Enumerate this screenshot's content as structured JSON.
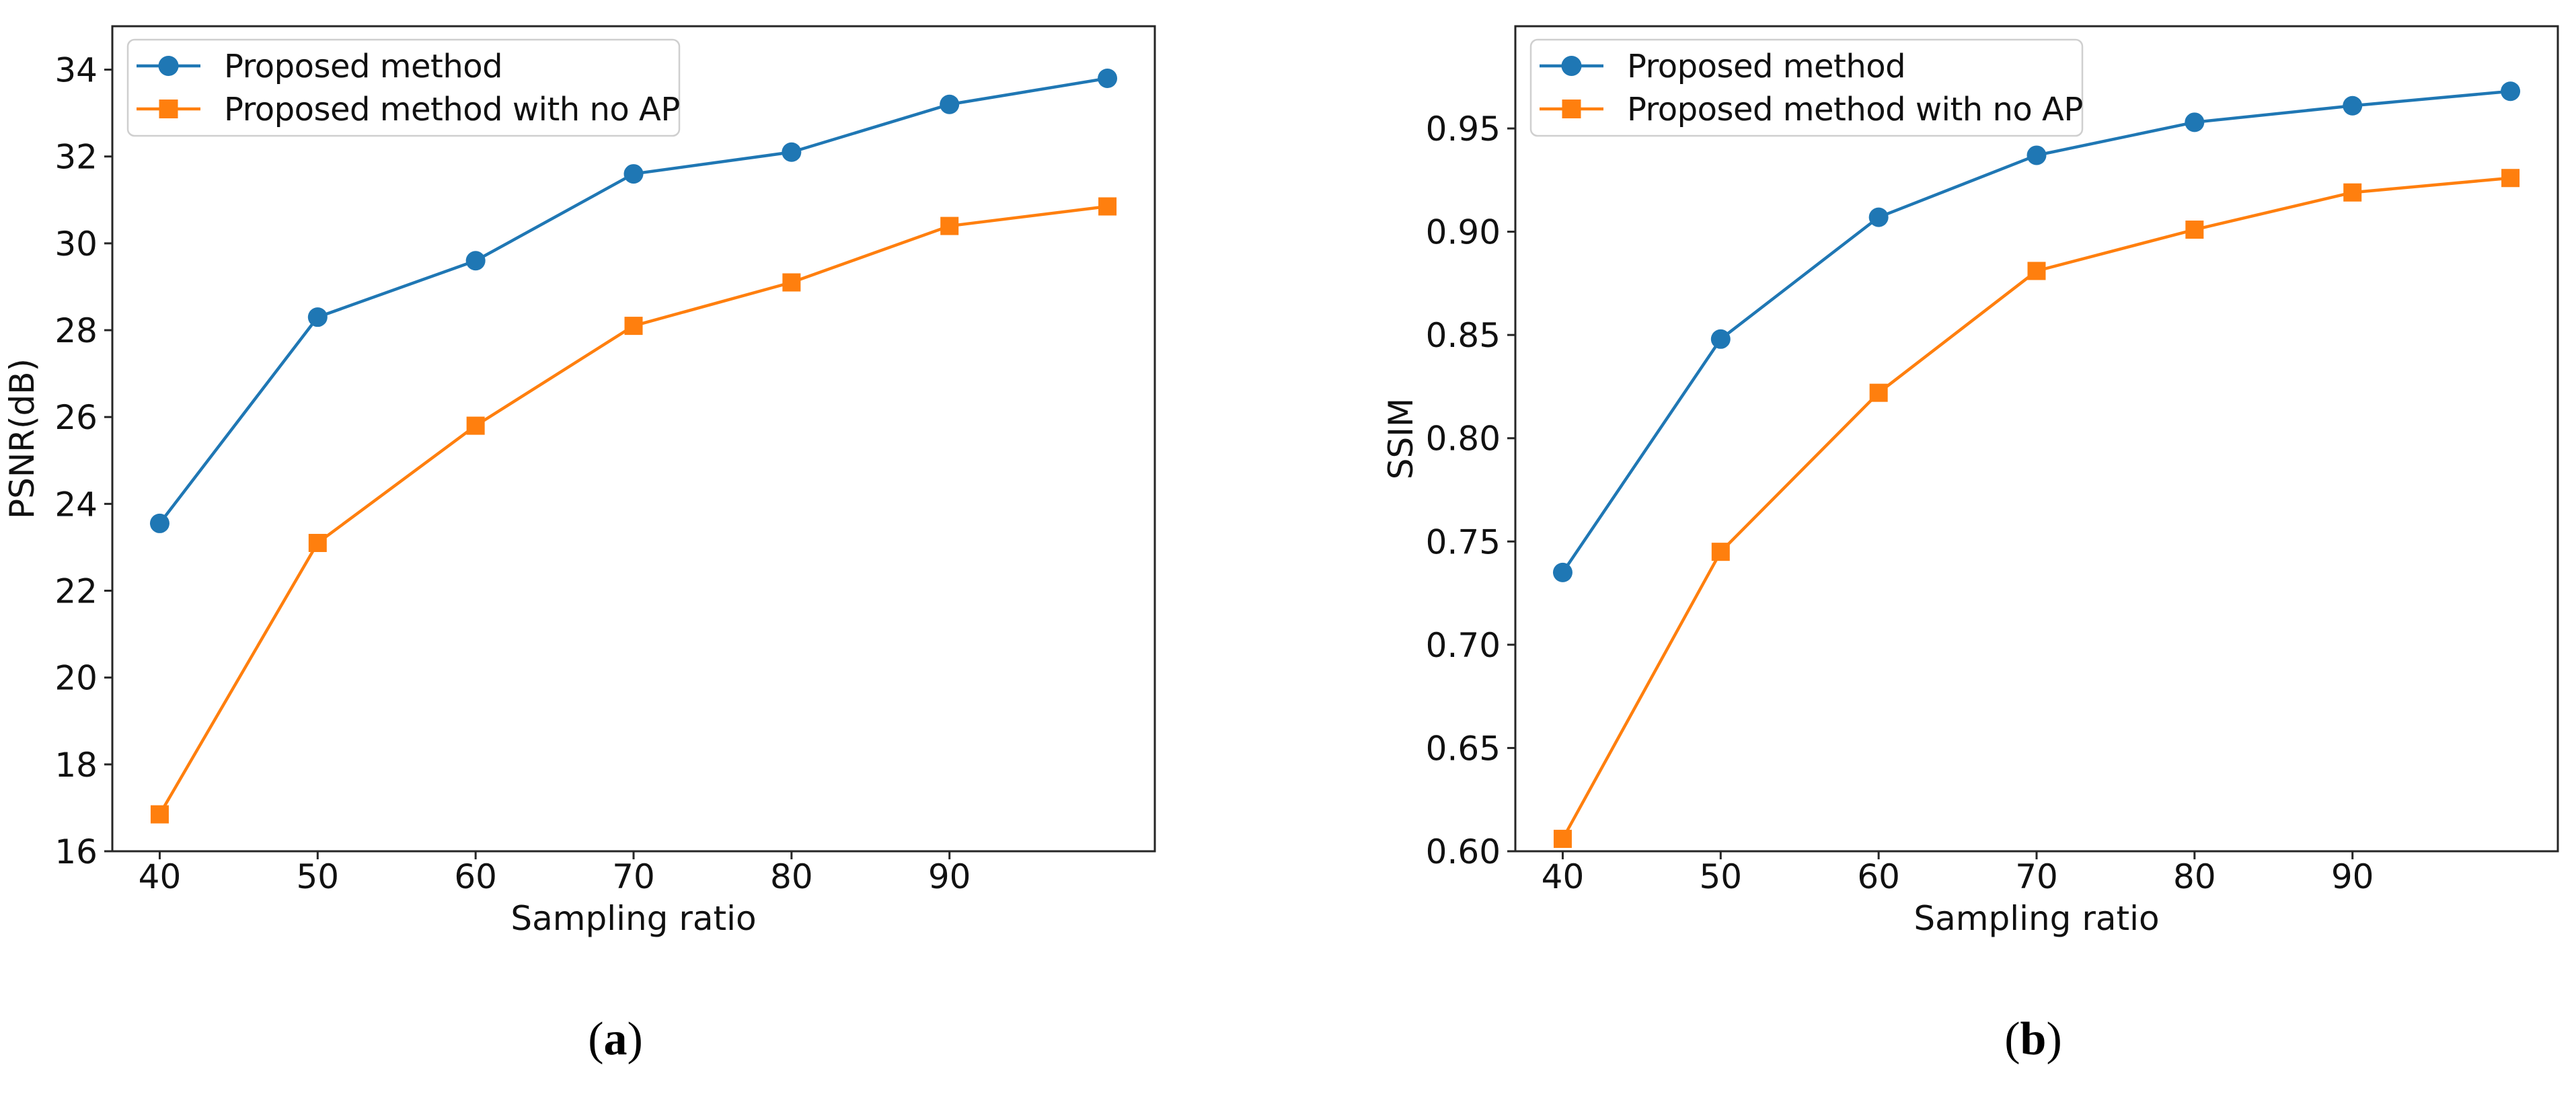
{
  "figure": {
    "background": "#ffffff",
    "text_color": "#111111",
    "spine_color": "#262626",
    "legend_border_color": "#cfcfcf",
    "legend_background": "#ffffff"
  },
  "captions": [
    {
      "open": "(",
      "letter": "a",
      "close": ")"
    },
    {
      "open": "(",
      "letter": "b",
      "close": ")"
    }
  ],
  "chart_data": [
    {
      "type": "line",
      "panel": "a",
      "title": "",
      "xlabel": "Sampling ratio",
      "ylabel": "PSNR(dB)",
      "x": [
        40,
        50,
        60,
        70,
        80,
        90,
        100
      ],
      "series": [
        {
          "name": "Proposed method",
          "color": "#1f77b4",
          "marker": "circle",
          "values": [
            23.55,
            28.3,
            29.6,
            31.6,
            32.1,
            33.2,
            33.8
          ]
        },
        {
          "name": "Proposed method with no AP",
          "color": "#ff7f0e",
          "marker": "square",
          "values": [
            16.85,
            23.1,
            25.8,
            28.1,
            29.1,
            30.4,
            30.85
          ]
        }
      ],
      "xlim": [
        37,
        103
      ],
      "ylim": [
        16.0,
        35.0
      ],
      "xticks": {
        "values": [
          40,
          50,
          60,
          70,
          80,
          90
        ],
        "labels": [
          "40",
          "50",
          "60",
          "70",
          "80",
          "90"
        ]
      },
      "yticks": {
        "values": [
          16,
          18,
          20,
          22,
          24,
          26,
          28,
          30,
          32,
          34
        ],
        "labels": [
          "16",
          "18",
          "20",
          "22",
          "24",
          "26",
          "28",
          "30",
          "32",
          "34"
        ]
      },
      "grid": false,
      "legend": {
        "position": "upper-left",
        "entries": [
          "Proposed method",
          "Proposed method with no AP"
        ]
      }
    },
    {
      "type": "line",
      "panel": "b",
      "title": "",
      "xlabel": "Sampling ratio",
      "ylabel": "SSIM",
      "x": [
        40,
        50,
        60,
        70,
        80,
        90,
        100
      ],
      "series": [
        {
          "name": "Proposed method",
          "color": "#1f77b4",
          "marker": "circle",
          "values": [
            0.735,
            0.848,
            0.907,
            0.937,
            0.953,
            0.961,
            0.968
          ]
        },
        {
          "name": "Proposed method with no AP",
          "color": "#ff7f0e",
          "marker": "square",
          "values": [
            0.606,
            0.745,
            0.822,
            0.881,
            0.901,
            0.919,
            0.926
          ]
        }
      ],
      "xlim": [
        37,
        103
      ],
      "ylim": [
        0.6,
        0.9995
      ],
      "xticks": {
        "values": [
          40,
          50,
          60,
          70,
          80,
          90
        ],
        "labels": [
          "40",
          "50",
          "60",
          "70",
          "80",
          "90"
        ]
      },
      "yticks": {
        "values": [
          0.6,
          0.65,
          0.7,
          0.75,
          0.8,
          0.85,
          0.9,
          0.95
        ],
        "labels": [
          "0.60",
          "0.65",
          "0.70",
          "0.75",
          "0.80",
          "0.85",
          "0.90",
          "0.95"
        ]
      },
      "grid": false,
      "legend": {
        "position": "upper-left",
        "entries": [
          "Proposed method",
          "Proposed method with no AP"
        ]
      }
    }
  ]
}
